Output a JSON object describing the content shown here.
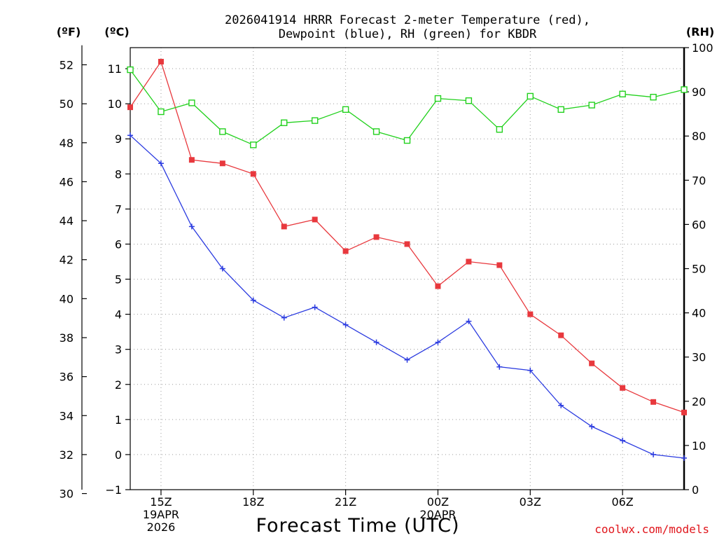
{
  "chart_data": {
    "type": "line",
    "title_line1": "2026041914 HRRR Forecast 2-meter Temperature (red),",
    "title_line2": "Dewpoint (blue), RH (green) for KBDR",
    "xlabel": "Forecast Time (UTC)",
    "credit": "coolwx.com/models",
    "colors": {
      "temperature": "#e8383d",
      "dewpoint": "#2b3be0",
      "rh": "#22d11d",
      "credit": "#e0151b",
      "grid": "#9a9a9a"
    },
    "unit_labels": {
      "fahrenheit": "(ºF)",
      "celsius": "(ºC)",
      "rh": "(RH)"
    },
    "celsius_axis": {
      "min": -1,
      "max": 11.6,
      "ticks": [
        "−1",
        "0",
        "1",
        "2",
        "3",
        "4",
        "5",
        "6",
        "7",
        "8",
        "9",
        "10",
        "11"
      ]
    },
    "fahrenheit_axis": {
      "ticks": [
        "30",
        "32",
        "34",
        "36",
        "38",
        "40",
        "42",
        "44",
        "46",
        "48",
        "50",
        "52"
      ]
    },
    "rh_axis": {
      "min": 0,
      "max": 100,
      "ticks": [
        "0",
        "10",
        "20",
        "30",
        "40",
        "50",
        "60",
        "70",
        "80",
        "90",
        "100"
      ]
    },
    "x_range": [
      14,
      32
    ],
    "x_ticks": [
      {
        "x": 15,
        "lines": [
          "15Z",
          "19APR",
          "2026"
        ]
      },
      {
        "x": 18,
        "lines": [
          "18Z"
        ]
      },
      {
        "x": 21,
        "lines": [
          "21Z"
        ]
      },
      {
        "x": 24,
        "lines": [
          "00Z",
          "20APR"
        ]
      },
      {
        "x": 27,
        "lines": [
          "03Z"
        ]
      },
      {
        "x": 30,
        "lines": [
          "06Z"
        ]
      }
    ],
    "x": [
      14,
      15,
      16,
      17,
      18,
      19,
      20,
      21,
      22,
      23,
      24,
      25,
      26,
      27,
      28,
      29,
      30,
      31,
      32
    ],
    "series": [
      {
        "name": "Temperature (°C)",
        "key": "temperature",
        "marker": "square-filled",
        "values": [
          9.9,
          11.2,
          8.4,
          8.3,
          8.0,
          6.5,
          6.7,
          5.8,
          6.2,
          6.0,
          4.8,
          5.5,
          5.4,
          4.0,
          3.4,
          2.6,
          1.9,
          1.5,
          1.2
        ]
      },
      {
        "name": "Dewpoint (°C)",
        "key": "dewpoint",
        "marker": "plus",
        "values": [
          9.1,
          8.3,
          6.5,
          5.3,
          4.4,
          3.9,
          4.2,
          3.7,
          3.2,
          2.7,
          3.2,
          3.8,
          2.5,
          2.4,
          1.4,
          0.8,
          0.4,
          0.0,
          -0.1
        ]
      },
      {
        "name": "RH (%)",
        "key": "rh",
        "marker": "square-open",
        "values": [
          95,
          85.5,
          87.5,
          81,
          78,
          83,
          83.5,
          86,
          81,
          79,
          88.5,
          88,
          81.5,
          89,
          86,
          87,
          89.5,
          88.8,
          90.5
        ]
      }
    ]
  }
}
